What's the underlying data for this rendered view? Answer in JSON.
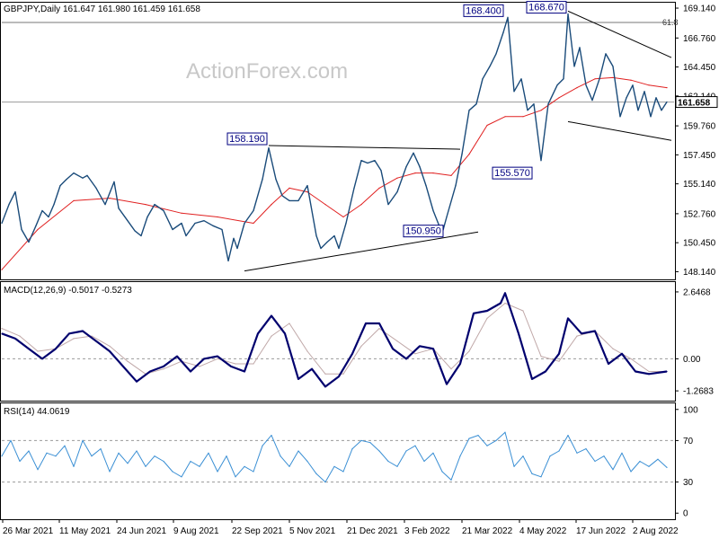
{
  "header": {
    "symbol_info": "GBPJPY,Daily  161.647 161.980 161.459 161.658",
    "watermark": "ActionForex.com",
    "fib_label": "61.8",
    "last_price": "161.658"
  },
  "colors": {
    "price": "#1a4b7a",
    "ma": "#e02020",
    "macd": "#00006e",
    "signal": "#c0a8a8",
    "rsi": "#3a8fd4",
    "annotation_border": "#000080"
  },
  "chart_data": [
    {
      "type": "line",
      "panel": "price",
      "ylim": [
        147.6,
        169.5
      ],
      "y_ticks": [
        "169.140",
        "166.760",
        "164.450",
        "162.140",
        "159.760",
        "157.450",
        "155.140",
        "152.760",
        "150.450",
        "148.140"
      ],
      "x_ticks": [
        "26 Mar 2021",
        "11 May 2021",
        "24 Jun 2021",
        "9 Aug 2021",
        "22 Sep 2021",
        "5 Nov 2021",
        "21 Dec 2021",
        "3 Feb 2022",
        "21 Mar 2022",
        "4 May 2022",
        "17 Jun 2022",
        "2 Aug 2022"
      ],
      "series": [
        {
          "kind": "close",
          "x": [
            0,
            8,
            15,
            22,
            30,
            38,
            45,
            52,
            58,
            65,
            72,
            80,
            90,
            95,
            105,
            115,
            125,
            130,
            140,
            148,
            155,
            162,
            170,
            180,
            190,
            200,
            205,
            215,
            225,
            235,
            245,
            252,
            258,
            262,
            270,
            280,
            290,
            297,
            305,
            312,
            320,
            330,
            340,
            350,
            355,
            362,
            370,
            375,
            383,
            392,
            400,
            407,
            415,
            422,
            430,
            440,
            450,
            458,
            465,
            472,
            480,
            490,
            495,
            505,
            512,
            520,
            528,
            535,
            543,
            550,
            558,
            563,
            570,
            578,
            585,
            592,
            600,
            608,
            618,
            625,
            630,
            637,
            643,
            650,
            657,
            665,
            672,
            680,
            688,
            695,
            702,
            708,
            715,
            722,
            728,
            734,
            740
          ],
          "values": [
            152.0,
            153.5,
            154.5,
            151.5,
            150.5,
            151.8,
            153.0,
            152.5,
            153.5,
            155.0,
            155.5,
            156.0,
            155.6,
            155.8,
            154.8,
            153.5,
            155.3,
            153.2,
            152.2,
            151.4,
            151.0,
            152.5,
            153.5,
            153.0,
            151.5,
            152.0,
            151.0,
            152.0,
            152.2,
            151.8,
            151.5,
            149.0,
            150.8,
            150.0,
            152.0,
            153.0,
            155.5,
            158.0,
            155.5,
            154.2,
            153.8,
            153.8,
            155.0,
            151.0,
            150.0,
            150.5,
            151.0,
            150.0,
            152.0,
            154.8,
            157.0,
            156.8,
            157.0,
            156.2,
            153.5,
            154.5,
            156.5,
            157.6,
            156.5,
            155.0,
            153.0,
            151.2,
            152.5,
            155.0,
            157.5,
            161.0,
            161.5,
            163.5,
            164.5,
            165.5,
            167.2,
            168.4,
            162.5,
            163.5,
            161.0,
            161.5,
            157.0,
            161.5,
            163.0,
            163.5,
            168.67,
            164.5,
            166.0,
            163.0,
            161.8,
            163.5,
            165.5,
            164.5,
            160.5,
            162.0,
            163.0,
            161.0,
            162.5,
            160.5,
            162.0,
            161.0,
            161.66
          ]
        },
        {
          "kind": "moving_average",
          "x": [
            0,
            40,
            80,
            120,
            160,
            200,
            240,
            280,
            300,
            320,
            340,
            360,
            380,
            400,
            420,
            440,
            460,
            480,
            500,
            520,
            540,
            560,
            580,
            600,
            620,
            640,
            660,
            680,
            700,
            720,
            740
          ],
          "values": [
            148.3,
            151.5,
            153.8,
            154.0,
            153.5,
            152.8,
            152.5,
            152.0,
            153.5,
            154.8,
            154.5,
            153.5,
            152.5,
            153.5,
            154.8,
            155.6,
            156.0,
            156.0,
            155.8,
            157.5,
            159.8,
            160.5,
            160.5,
            161.0,
            162.0,
            162.8,
            163.5,
            163.6,
            163.4,
            163.0,
            162.8
          ]
        }
      ],
      "annotations": [
        {
          "label": "168.400",
          "x": 560,
          "value": 168.4
        },
        {
          "label": "168.670",
          "x": 630,
          "value": 168.67
        },
        {
          "label": "158.190",
          "x": 297,
          "value": 158.19
        },
        {
          "label": "155.570",
          "x": 592,
          "value": 155.57
        },
        {
          "label": "150.950",
          "x": 493,
          "value": 150.95
        }
      ],
      "trend_lines": [
        {
          "from": [
            297,
            158.19
          ],
          "to": [
            510,
            157.9
          ]
        },
        {
          "from": [
            270,
            148.2
          ],
          "to": [
            530,
            151.3
          ]
        },
        {
          "from": [
            630,
            168.9
          ],
          "to": [
            745,
            165.2
          ]
        },
        {
          "from": [
            630,
            160.1
          ],
          "to": [
            745,
            158.6
          ]
        }
      ],
      "horizontal_lines": [
        {
          "name": "fib-61.8",
          "value": 168.0
        },
        {
          "name": "last-price",
          "value": 161.658
        }
      ]
    },
    {
      "type": "line",
      "panel": "macd",
      "title": "MACD(12,26,9) -0.5017 -0.5273",
      "ylim": [
        -1.62,
        3.0
      ],
      "y_ticks": [
        "2.6468",
        "0.00",
        "-1.2683"
      ],
      "series": [
        {
          "kind": "macd",
          "x": [
            0,
            15,
            30,
            45,
            60,
            75,
            90,
            105,
            120,
            135,
            150,
            165,
            180,
            195,
            210,
            225,
            240,
            255,
            270,
            285,
            300,
            315,
            330,
            345,
            360,
            375,
            390,
            405,
            420,
            435,
            450,
            465,
            480,
            495,
            510,
            525,
            540,
            555,
            560,
            575,
            590,
            605,
            620,
            630,
            645,
            660,
            675,
            690,
            705,
            720,
            740
          ],
          "values": [
            1.0,
            0.8,
            0.4,
            0.0,
            0.4,
            1.0,
            1.1,
            0.7,
            0.3,
            -0.3,
            -0.9,
            -0.5,
            -0.3,
            0.1,
            -0.5,
            0.0,
            0.1,
            -0.3,
            -0.5,
            1.0,
            1.7,
            1.0,
            -0.8,
            -0.4,
            -1.1,
            -0.7,
            0.2,
            1.4,
            1.4,
            0.4,
            0.0,
            0.5,
            0.4,
            -1.0,
            -0.2,
            1.8,
            1.9,
            2.2,
            2.6,
            1.0,
            -0.8,
            -0.5,
            0.2,
            1.6,
            1.0,
            1.1,
            -0.2,
            0.2,
            -0.5,
            -0.6,
            -0.5
          ]
        },
        {
          "kind": "signal",
          "x": [
            0,
            20,
            40,
            60,
            80,
            100,
            120,
            140,
            160,
            180,
            200,
            220,
            240,
            260,
            280,
            300,
            320,
            340,
            360,
            380,
            400,
            420,
            440,
            460,
            480,
            500,
            520,
            540,
            560,
            580,
            600,
            620,
            640,
            660,
            680,
            700,
            720,
            740
          ],
          "values": [
            1.2,
            0.9,
            0.3,
            0.4,
            0.8,
            0.9,
            0.5,
            -0.1,
            -0.6,
            -0.4,
            -0.1,
            -0.3,
            0.0,
            -0.2,
            -0.2,
            0.9,
            1.4,
            0.3,
            -0.6,
            -0.6,
            0.5,
            1.2,
            0.7,
            0.2,
            0.4,
            -0.4,
            0.3,
            1.6,
            2.2,
            1.9,
            0.1,
            -0.1,
            0.9,
            1.1,
            0.4,
            0.0,
            -0.5,
            -0.5
          ]
        }
      ],
      "horizontal_lines": [
        {
          "name": "zero-line",
          "value": 0.0
        }
      ]
    },
    {
      "type": "line",
      "panel": "rsi",
      "title": "RSI(14) 44.0619",
      "ylim": [
        -5,
        105
      ],
      "y_ticks": [
        "100",
        "70",
        "30",
        "0"
      ],
      "series": [
        {
          "kind": "rsi",
          "x": [
            0,
            10,
            20,
            30,
            40,
            50,
            60,
            70,
            80,
            90,
            100,
            110,
            120,
            130,
            140,
            150,
            160,
            170,
            180,
            190,
            200,
            210,
            220,
            230,
            240,
            250,
            260,
            270,
            280,
            290,
            300,
            310,
            320,
            330,
            340,
            350,
            360,
            370,
            380,
            390,
            400,
            410,
            420,
            430,
            440,
            450,
            460,
            470,
            480,
            490,
            500,
            510,
            520,
            530,
            540,
            550,
            560,
            570,
            580,
            590,
            600,
            610,
            620,
            630,
            640,
            650,
            660,
            670,
            680,
            690,
            700,
            710,
            720,
            730,
            740
          ],
          "values": [
            55,
            70,
            50,
            60,
            42,
            58,
            55,
            65,
            45,
            70,
            55,
            62,
            40,
            58,
            48,
            60,
            45,
            55,
            50,
            40,
            35,
            50,
            45,
            58,
            40,
            55,
            35,
            45,
            40,
            65,
            75,
            55,
            45,
            60,
            50,
            38,
            30,
            45,
            40,
            62,
            70,
            68,
            60,
            50,
            45,
            60,
            65,
            50,
            58,
            40,
            32,
            55,
            72,
            75,
            65,
            70,
            78,
            45,
            55,
            38,
            35,
            55,
            60,
            75,
            58,
            62,
            50,
            55,
            42,
            58,
            40,
            50,
            45,
            52,
            44.06
          ]
        }
      ],
      "horizontal_lines": [
        {
          "name": "level-70",
          "value": 70
        },
        {
          "name": "level-30",
          "value": 30
        }
      ]
    }
  ]
}
